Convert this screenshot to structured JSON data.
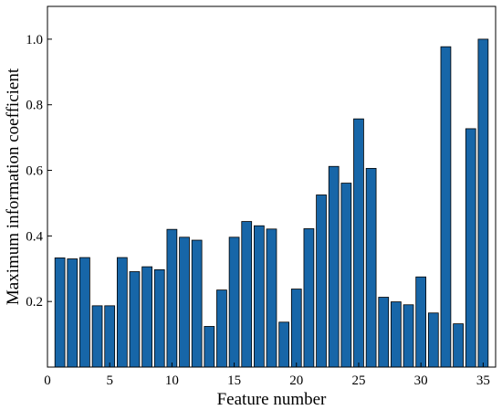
{
  "chart_data": {
    "type": "bar",
    "title": "",
    "xlabel": "Feature number",
    "ylabel": "Maximum information coefficient",
    "x": [
      1,
      2,
      3,
      4,
      5,
      6,
      7,
      8,
      9,
      10,
      11,
      12,
      13,
      14,
      15,
      16,
      17,
      18,
      19,
      20,
      21,
      22,
      23,
      24,
      25,
      26,
      27,
      28,
      29,
      30,
      31,
      32,
      33,
      34,
      35
    ],
    "values": [
      0.333,
      0.33,
      0.334,
      0.187,
      0.187,
      0.334,
      0.291,
      0.306,
      0.297,
      0.42,
      0.396,
      0.387,
      0.124,
      0.235,
      0.396,
      0.444,
      0.431,
      0.421,
      0.137,
      0.238,
      0.422,
      0.525,
      0.612,
      0.561,
      0.757,
      0.606,
      0.213,
      0.199,
      0.19,
      0.275,
      0.165,
      0.977,
      0.132,
      0.727,
      1.0
    ],
    "xlim": [
      0,
      36
    ],
    "ylim": [
      0,
      1.1
    ],
    "x_ticks": [
      0,
      5,
      10,
      15,
      20,
      25,
      30,
      35
    ],
    "x_tick_labels": [
      "0",
      "5",
      "10",
      "15",
      "20",
      "25",
      "30",
      "35"
    ],
    "y_ticks": [
      0.2,
      0.4,
      0.6,
      0.8,
      1.0
    ],
    "y_tick_labels": [
      "0.2",
      "0.4",
      "0.6",
      "0.8",
      "1.0"
    ],
    "bar_color": "#1766a8",
    "bar_edge_color": "#000000",
    "grid": false,
    "legend": "none"
  }
}
